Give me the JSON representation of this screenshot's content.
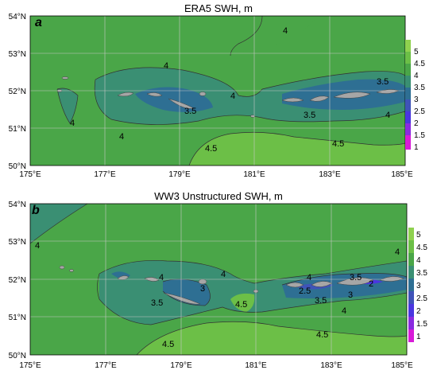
{
  "panels": [
    {
      "label": "a",
      "title": "ERA5 SWH, m",
      "y_ticks": [
        "54°N",
        "53°N",
        "52°N",
        "51°N",
        "50°N"
      ],
      "x_ticks": [
        "175°E",
        "177°E",
        "179°E",
        "181°E",
        "183°E",
        "185°E"
      ],
      "colorbar": [
        "5",
        "4.5",
        "4",
        "3.5",
        "3",
        "2.5",
        "2",
        "1.5",
        "1"
      ],
      "contour_labels": [
        "4",
        "4",
        "4",
        "4",
        "4",
        "4",
        "4.5",
        "4.5",
        "3.5",
        "3.5",
        "3.5"
      ]
    },
    {
      "label": "b",
      "title": "WW3 Unstructured SWH, m",
      "y_ticks": [
        "54°N",
        "53°N",
        "52°N",
        "51°N",
        "50°N"
      ],
      "x_ticks": [
        "175°E",
        "177°E",
        "179°E",
        "181°E",
        "183°E",
        "185°E"
      ],
      "colorbar": [
        "5",
        "4.5",
        "4",
        "3.5",
        "3",
        "2.5",
        "2",
        "1.5",
        "1"
      ],
      "contour_labels": [
        "4",
        "4",
        "4",
        "3",
        "3.5",
        "4.5",
        "4.5",
        "4.5",
        "4",
        "3.5",
        "3.5",
        "2.5",
        "2",
        "3",
        "4",
        "4"
      ]
    }
  ],
  "colors": {
    "swh_4_5": "#6cbf47",
    "swh_4": "#4aa648",
    "swh_3_5": "#3a8f73",
    "swh_3": "#2e6f93",
    "swh_2_5": "#3f53b8",
    "swh_2": "#4a36e0",
    "swh_1_5": "#8a2be0",
    "swh_1": "#d81bd8",
    "swh_5": "#8fd14f",
    "land": "#a6a6a6"
  }
}
